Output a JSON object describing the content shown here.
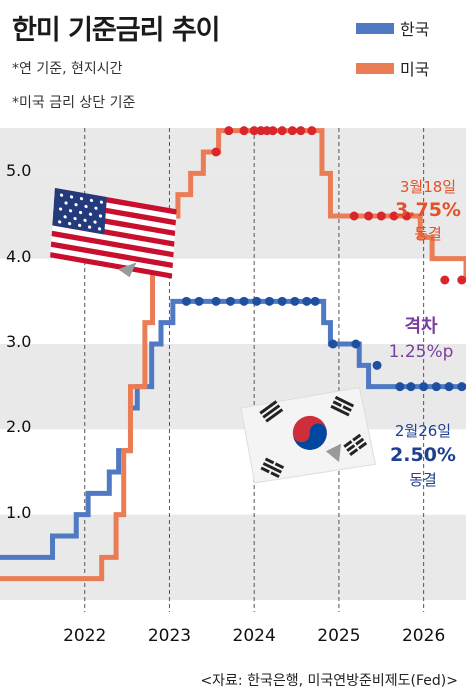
{
  "header": {
    "title": "한미 기준금리 추이",
    "note1": "*연 기준, 현지시간",
    "note2": "*미국 금리 상단 기준"
  },
  "legend": [
    {
      "label": "한국",
      "color": "#4f79c2"
    },
    {
      "label": "미국",
      "color": "#eb7d56"
    }
  ],
  "annotations": {
    "us": {
      "date": "3월18일",
      "value": "3.75%",
      "status": "동결",
      "color": "#e5502a"
    },
    "gap": {
      "label": "격차",
      "value": "1.25%p",
      "color": "#7a3f9d"
    },
    "kr": {
      "date": "2월26일",
      "value": "2.50%",
      "status": "동결",
      "color": "#1f3f8f"
    }
  },
  "source": "<자료: 한국은행, 미국연방준비제도(Fed)>",
  "flags": [
    "us-flag-icon",
    "korea-flag-icon"
  ],
  "chart_data": {
    "type": "line",
    "xlim": [
      2021.0,
      2026.5
    ],
    "ylim": [
      0.0,
      6.0
    ],
    "x_ticks": [
      2022,
      2023,
      2024,
      2025,
      2026
    ],
    "y_ticks": [
      1.0,
      2.0,
      3.0,
      4.0,
      5.0
    ],
    "step": true,
    "series": [
      {
        "name": "한국",
        "color": "#4f79c2",
        "x": [
          2021.0,
          2021.62,
          2021.9,
          2022.04,
          2022.29,
          2022.4,
          2022.54,
          2022.62,
          2022.79,
          2022.9,
          2023.04,
          2023.1,
          2024.82,
          2024.9,
          2025.24,
          2025.35,
          2025.62,
          2025.8,
          2026.5
        ],
        "y": [
          0.5,
          0.75,
          1.0,
          1.25,
          1.5,
          1.75,
          2.25,
          2.5,
          3.0,
          3.25,
          3.5,
          3.5,
          3.25,
          3.0,
          2.75,
          2.5,
          2.5,
          2.5,
          2.5
        ],
        "markers_x": [
          2023.2,
          2023.35,
          2023.55,
          2023.72,
          2023.88,
          2024.03,
          2024.18,
          2024.33,
          2024.48,
          2024.62,
          2024.72,
          2024.93,
          2025.2,
          2025.45,
          2025.72,
          2025.85,
          2026.0,
          2026.15,
          2026.3,
          2026.45
        ],
        "markers_y": [
          3.5,
          3.5,
          3.5,
          3.5,
          3.5,
          3.5,
          3.5,
          3.5,
          3.5,
          3.5,
          3.5,
          3.0,
          3.0,
          2.75,
          2.5,
          2.5,
          2.5,
          2.5,
          2.5,
          2.5
        ]
      },
      {
        "name": "미국",
        "color": "#eb7d56",
        "x": [
          2021.0,
          2022.2,
          2022.37,
          2022.46,
          2022.54,
          2022.71,
          2022.8,
          2022.92,
          2023.1,
          2023.25,
          2023.4,
          2023.58,
          2024.72,
          2024.8,
          2024.9,
          2025.96,
          2026.1,
          2026.5
        ],
        "y": [
          0.25,
          0.5,
          1.0,
          1.75,
          2.5,
          3.25,
          4.0,
          4.5,
          4.75,
          5.0,
          5.25,
          5.5,
          5.5,
          5.0,
          4.5,
          4.25,
          4.0,
          3.75
        ],
        "markers_x": [
          2023.55,
          2023.7,
          2023.88,
          2024.0,
          2024.08,
          2024.15,
          2024.22,
          2024.33,
          2024.45,
          2024.55,
          2024.68,
          2025.18,
          2025.35,
          2025.5,
          2025.65,
          2025.8,
          2026.25,
          2026.45
        ],
        "markers_y": [
          5.25,
          5.5,
          5.5,
          5.5,
          5.5,
          5.5,
          5.5,
          5.5,
          5.5,
          5.5,
          5.5,
          4.5,
          4.5,
          4.5,
          4.5,
          4.5,
          3.75,
          3.75
        ]
      }
    ]
  }
}
